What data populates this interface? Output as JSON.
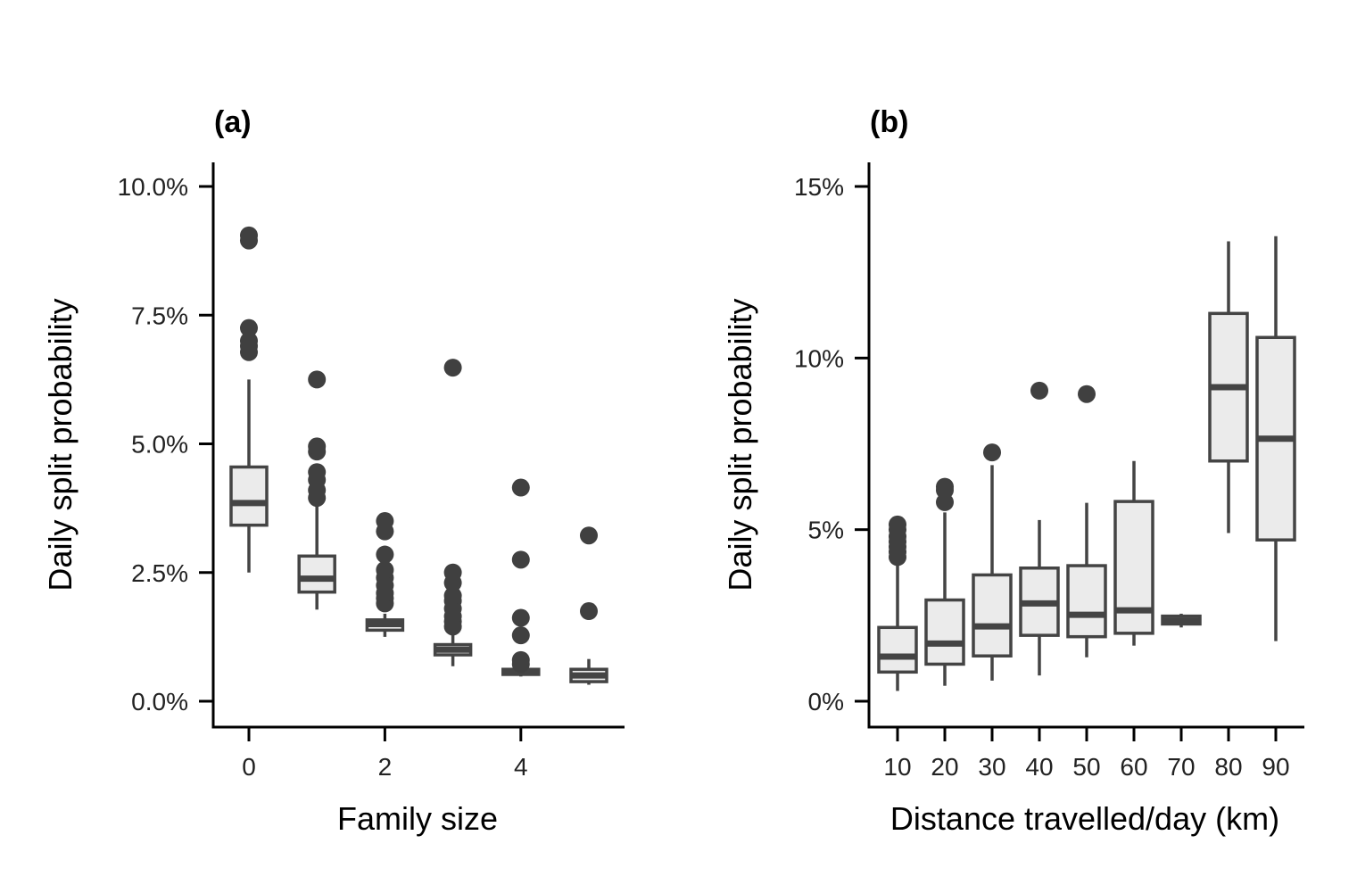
{
  "chart_data": [
    {
      "type": "box",
      "panel_label": "(a)",
      "xlabel": "Family size",
      "ylabel": "Daily split probability",
      "ylim": [
        -0.5,
        10.5
      ],
      "yticks": [
        0,
        2.5,
        5,
        7.5,
        10
      ],
      "ytick_labels": [
        "0.0%",
        "2.5%",
        "5.0%",
        "7.5%",
        "10.0%"
      ],
      "xlim": [
        -0.5,
        5.5
      ],
      "xticks": [
        0,
        2,
        4
      ],
      "xtick_labels": [
        "0",
        "2",
        "4"
      ],
      "unit": "%",
      "grid": false,
      "boxes": [
        {
          "x": 0,
          "whisker_low": 2.5,
          "q1": 3.42,
          "median": 3.85,
          "q3": 4.55,
          "whisker_high": 6.25,
          "outliers": [
            6.78,
            6.9,
            7.0,
            7.25,
            8.95,
            9.05
          ]
        },
        {
          "x": 1,
          "whisker_low": 1.78,
          "q1": 2.12,
          "median": 2.38,
          "q3": 2.82,
          "whisker_high": 3.9,
          "outliers": [
            3.95,
            4.1,
            4.3,
            4.45,
            4.85,
            4.95,
            6.25
          ]
        },
        {
          "x": 2,
          "whisker_low": 1.25,
          "q1": 1.38,
          "median": 1.5,
          "q3": 1.58,
          "whisker_high": 1.7,
          "outliers": [
            1.9,
            2.0,
            2.1,
            2.25,
            2.4,
            2.55,
            2.85,
            3.3,
            3.5
          ]
        },
        {
          "x": 3,
          "whisker_low": 0.68,
          "q1": 0.9,
          "median": 1.0,
          "q3": 1.1,
          "whisker_high": 1.3,
          "outliers": [
            1.45,
            1.55,
            1.65,
            1.8,
            1.95,
            2.05,
            2.3,
            2.5,
            6.48
          ]
        },
        {
          "x": 4,
          "whisker_low": 0.48,
          "q1": 0.52,
          "median": 0.58,
          "q3": 0.62,
          "whisker_high": 0.65,
          "outliers": [
            0.72,
            0.8,
            1.28,
            1.62,
            2.75,
            4.15
          ]
        },
        {
          "x": 5,
          "whisker_low": 0.32,
          "q1": 0.38,
          "median": 0.5,
          "q3": 0.62,
          "whisker_high": 0.82,
          "outliers": [
            1.75,
            3.22
          ]
        }
      ]
    },
    {
      "type": "box",
      "panel_label": "(b)",
      "xlabel": "Distance travelled/day (km)",
      "ylabel": "Daily split probability",
      "ylim": [
        -0.75,
        15.75
      ],
      "yticks": [
        0,
        5,
        10,
        15
      ],
      "ytick_labels": [
        "0%",
        "5%",
        "10%",
        "15%"
      ],
      "xlim": [
        5,
        95
      ],
      "xticks": [
        10,
        20,
        30,
        40,
        50,
        60,
        70,
        80,
        90
      ],
      "xtick_labels": [
        "10",
        "20",
        "30",
        "40",
        "50",
        "60",
        "70",
        "80",
        "90"
      ],
      "unit": "%",
      "grid": false,
      "boxes": [
        {
          "x": 10,
          "whisker_low": 0.3,
          "q1": 0.85,
          "median": 1.3,
          "q3": 2.15,
          "whisker_high": 4.0,
          "outliers": [
            4.2,
            4.35,
            4.5,
            4.65,
            4.8,
            5.0,
            5.15
          ]
        },
        {
          "x": 20,
          "whisker_low": 0.45,
          "q1": 1.08,
          "median": 1.68,
          "q3": 2.95,
          "whisker_high": 5.5,
          "outliers": [
            5.8,
            6.15,
            6.25
          ]
        },
        {
          "x": 30,
          "whisker_low": 0.6,
          "q1": 1.32,
          "median": 2.18,
          "q3": 3.68,
          "whisker_high": 6.88,
          "outliers": [
            7.25
          ]
        },
        {
          "x": 40,
          "whisker_low": 0.75,
          "q1": 1.92,
          "median": 2.85,
          "q3": 3.88,
          "whisker_high": 5.28,
          "outliers": [
            9.05
          ]
        },
        {
          "x": 50,
          "whisker_low": 1.28,
          "q1": 1.88,
          "median": 2.52,
          "q3": 3.95,
          "whisker_high": 5.78,
          "outliers": [
            8.95
          ]
        },
        {
          "x": 60,
          "whisker_low": 1.62,
          "q1": 1.98,
          "median": 2.65,
          "q3": 5.82,
          "whisker_high": 7.0,
          "outliers": []
        },
        {
          "x": 70,
          "whisker_low": 2.15,
          "q1": 2.25,
          "median": 2.35,
          "q3": 2.48,
          "whisker_high": 2.55,
          "outliers": []
        },
        {
          "x": 80,
          "whisker_low": 4.9,
          "q1": 7.0,
          "median": 9.15,
          "q3": 11.3,
          "whisker_high": 13.4,
          "outliers": []
        },
        {
          "x": 90,
          "whisker_low": 1.75,
          "q1": 4.7,
          "median": 7.65,
          "q3": 10.6,
          "whisker_high": 13.55,
          "outliers": []
        }
      ]
    }
  ]
}
